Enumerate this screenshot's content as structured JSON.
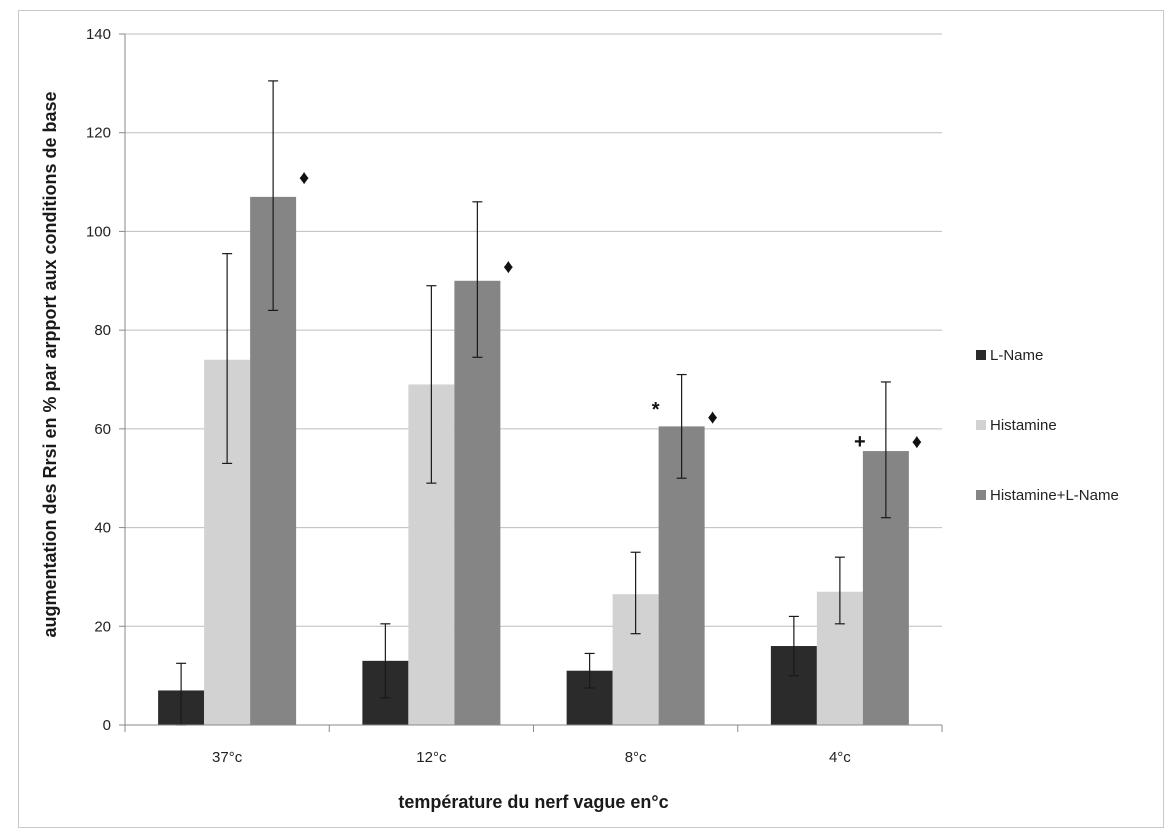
{
  "chart_data": {
    "type": "bar",
    "title": "",
    "xlabel": "température du nerf vague en°c",
    "ylabel": "augmentation des Rrsi en % par arpport aux conditions de base",
    "categories": [
      "37°c",
      "12°c",
      "8°c",
      "4°c"
    ],
    "ylim": [
      0,
      140
    ],
    "yticks": [
      0,
      20,
      40,
      60,
      80,
      100,
      120,
      140
    ],
    "grid": true,
    "legend_position": "right",
    "series": [
      {
        "name": "L-Name",
        "color": "#2b2b2b",
        "values": [
          7,
          13,
          11,
          16
        ],
        "error_high": [
          12.5,
          20.5,
          14.5,
          22
        ],
        "error_low": [
          0,
          5.5,
          7.5,
          10
        ]
      },
      {
        "name": "Histamine",
        "color": "#d2d2d2",
        "values": [
          74,
          69,
          26.5,
          27
        ],
        "error_high": [
          95.5,
          89,
          35,
          34
        ],
        "error_low": [
          53,
          49,
          18.5,
          20.5
        ]
      },
      {
        "name": "Histamine+L-Name",
        "color": "#858585",
        "values": [
          107,
          90,
          60.5,
          55.5
        ],
        "error_high": [
          130.5,
          106,
          71,
          69.5
        ],
        "error_low": [
          84,
          74.5,
          50,
          42
        ]
      }
    ],
    "annotations": [
      {
        "category_index": 0,
        "series_index": 2,
        "text": "♦",
        "y": 111
      },
      {
        "category_index": 1,
        "series_index": 2,
        "text": "♦",
        "y": 93
      },
      {
        "category_index": 2,
        "series_index": 2,
        "text": "♦",
        "y": 62.5
      },
      {
        "category_index": 3,
        "series_index": 2,
        "text": "♦",
        "y": 57.5
      },
      {
        "category_index": 2,
        "series_index": 2,
        "text": "*",
        "y": 64,
        "side": "left"
      },
      {
        "category_index": 3,
        "series_index": 2,
        "text": "+",
        "y": 57.5,
        "side": "left"
      }
    ]
  }
}
